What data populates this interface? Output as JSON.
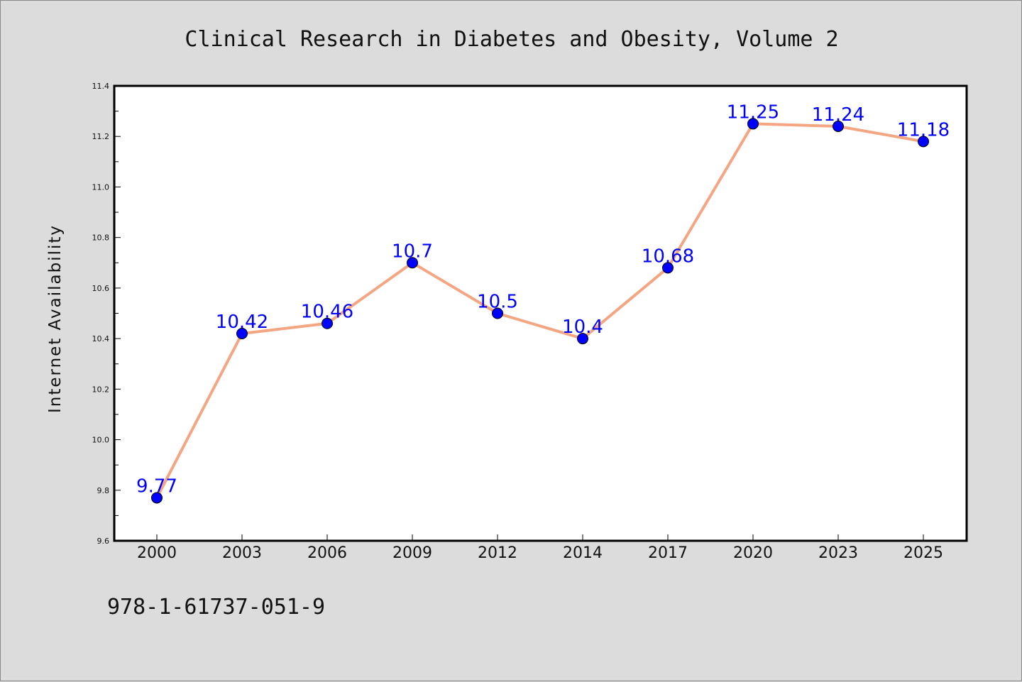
{
  "chart_data": {
    "type": "line",
    "title": "Clinical Research in Diabetes and Obesity, Volume 2",
    "xlabel": "",
    "ylabel": "Internet Availability",
    "categories": [
      "2000",
      "2003",
      "2006",
      "2009",
      "2012",
      "2014",
      "2017",
      "2020",
      "2023",
      "2025"
    ],
    "series": [
      {
        "values": [
          9.77,
          10.42,
          10.46,
          10.7,
          10.5,
          10.4,
          10.68,
          11.25,
          11.24,
          11.18
        ],
        "data_labels": [
          "9.77",
          "10.42",
          "10.46",
          "10.7",
          "10.5",
          "10.4",
          "10.68",
          "11.25",
          "11.24",
          "11.18"
        ],
        "line_color": "#f4a582",
        "marker_color": "#0000ff"
      }
    ],
    "ylim": [
      9.6,
      11.4
    ],
    "yticks": [
      "9.6",
      "9.8",
      "10.0",
      "10.2",
      "10.4",
      "10.6",
      "10.8",
      "11.0",
      "11.2",
      "11.4"
    ],
    "grid": false,
    "legend": "none"
  },
  "footer": {
    "text": "978-1-61737-051-9"
  },
  "colors": {
    "background": "#dcdcdc",
    "plot_background": "#ffffff",
    "data_label": "#0000ff"
  }
}
